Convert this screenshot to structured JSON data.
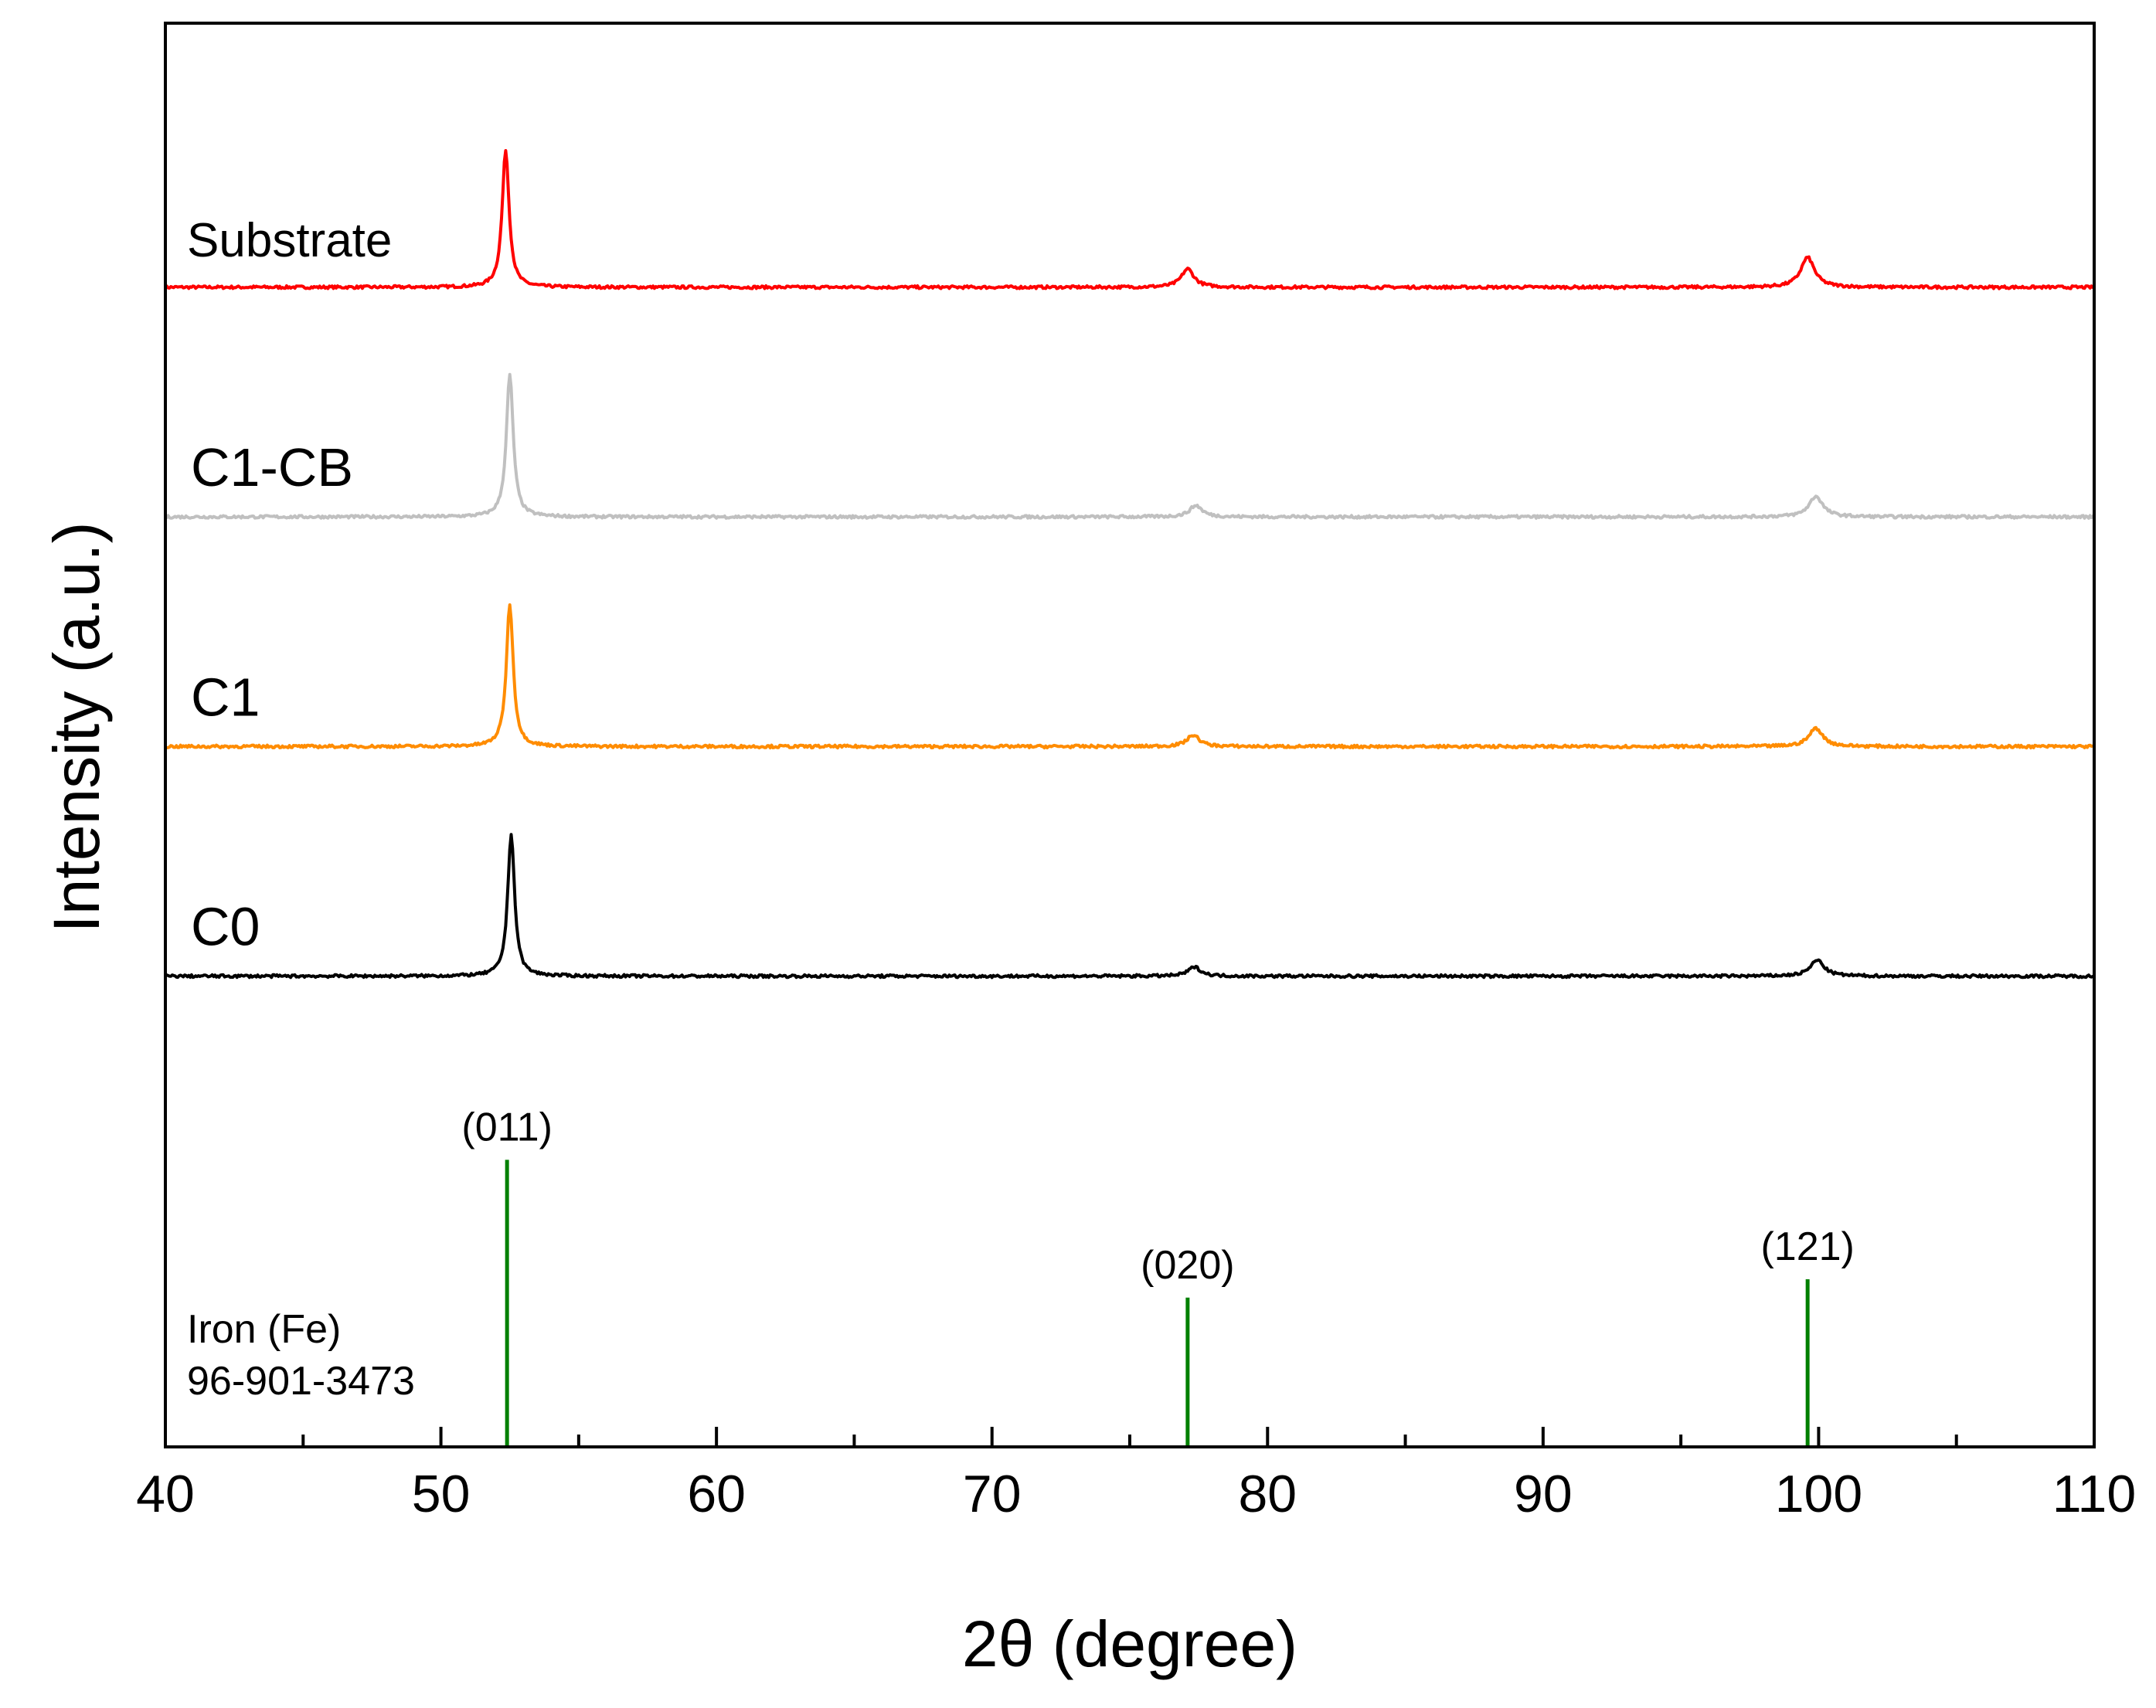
{
  "chart_data": {
    "type": "line",
    "xlabel": "2θ (degree)",
    "ylabel": "Intensity (a.u.)",
    "xlim": [
      40,
      110
    ],
    "x_ticks": [
      40,
      50,
      60,
      70,
      80,
      90,
      100,
      110
    ],
    "grid": false,
    "legend": "none",
    "series": [
      {
        "name": "Substrate",
        "color": "#ff0000",
        "baseline": 3.55,
        "peaks": [
          {
            "center": 52.35,
            "height": 0.6,
            "width": 0.3
          },
          {
            "center": 77.1,
            "height": 0.08,
            "width": 0.55
          },
          {
            "center": 99.6,
            "height": 0.13,
            "width": 0.6
          }
        ]
      },
      {
        "name": "C1-CB",
        "color": "#c0c0c0",
        "baseline": 2.55,
        "peaks": [
          {
            "center": 52.5,
            "height": 0.62,
            "width": 0.3
          },
          {
            "center": 77.4,
            "height": 0.05,
            "width": 0.55
          },
          {
            "center": 99.9,
            "height": 0.09,
            "width": 0.6
          }
        ]
      },
      {
        "name": "C1",
        "color": "#ff8c00",
        "baseline": 1.55,
        "peaks": [
          {
            "center": 52.5,
            "height": 0.62,
            "width": 0.3
          },
          {
            "center": 77.3,
            "height": 0.05,
            "width": 0.55
          },
          {
            "center": 99.9,
            "height": 0.08,
            "width": 0.6
          }
        ]
      },
      {
        "name": "C0",
        "color": "#000000",
        "baseline": 0.55,
        "peaks": [
          {
            "center": 52.55,
            "height": 0.62,
            "width": 0.3
          },
          {
            "center": 77.35,
            "height": 0.04,
            "width": 0.55
          },
          {
            "center": 99.95,
            "height": 0.07,
            "width": 0.6
          }
        ]
      }
    ],
    "reference": {
      "name": "Iron (Fe)",
      "code": "96-901-3473",
      "color": "#008000",
      "lines": [
        {
          "x": 52.4,
          "label": "(011)",
          "height": 1.25
        },
        {
          "x": 77.1,
          "label": "(020)",
          "height": 0.65
        },
        {
          "x": 99.6,
          "label": "(121)",
          "height": 0.73
        }
      ]
    },
    "ylim": [
      -1.5,
      4.7
    ]
  }
}
